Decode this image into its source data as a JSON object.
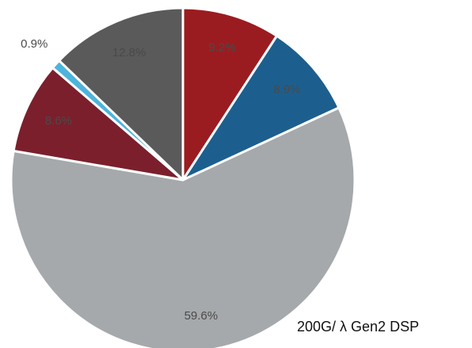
{
  "chart_data": {
    "type": "pie",
    "values": [
      9.2,
      8.9,
      59.6,
      8.6,
      0.9,
      12.8
    ],
    "value_labels": [
      "9.2%",
      "8.9%",
      "59.6%",
      "8.6%",
      "0.9%",
      "12.8%"
    ],
    "colors": [
      "#9b1c20",
      "#1c5f8e",
      "#a6a9ab",
      "#7b1f2d",
      "#4db4dc",
      "#5a5a5a"
    ],
    "annotation": "200G/ λ Gen2 DSP"
  }
}
